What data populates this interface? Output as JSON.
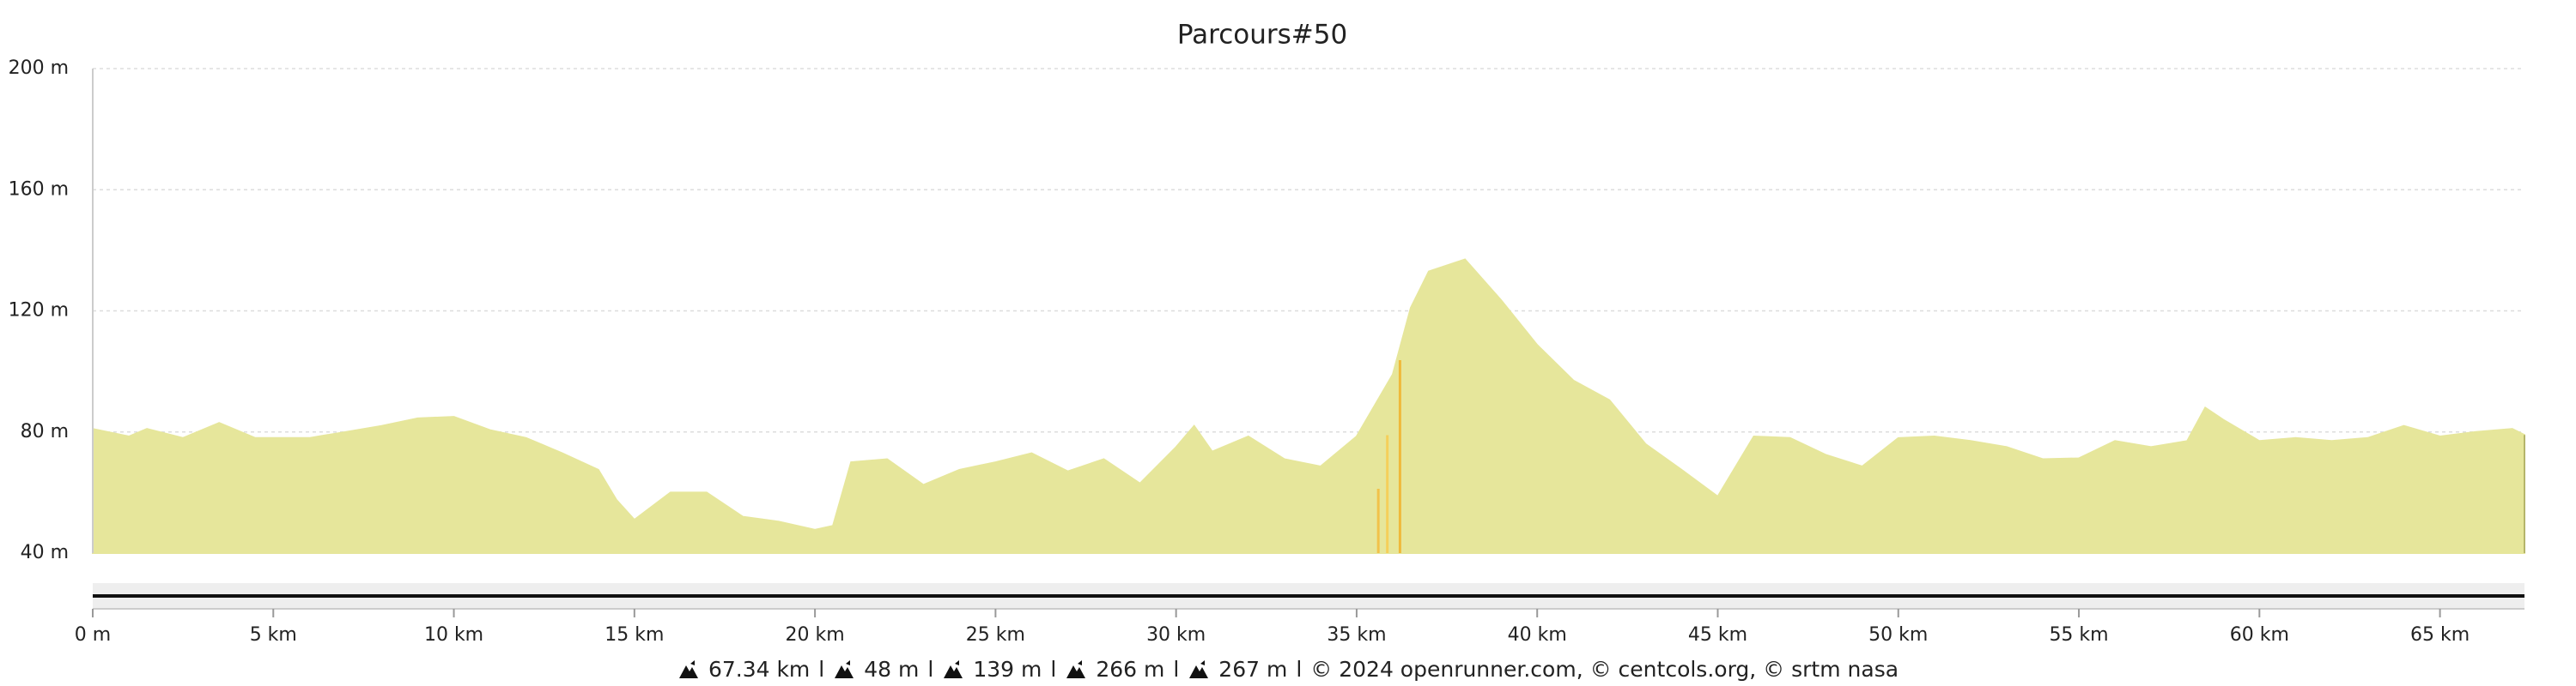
{
  "chart_data": {
    "type": "area",
    "title": "Parcours#50",
    "x": [
      0,
      1,
      1.5,
      2.5,
      3.5,
      4.5,
      5,
      6,
      7,
      8,
      9,
      10,
      11,
      12,
      13,
      14,
      14.5,
      15,
      16,
      17,
      18,
      19,
      20,
      20.5,
      21,
      22,
      23,
      24,
      25,
      26,
      27,
      28,
      29,
      30,
      30.5,
      31,
      32,
      33,
      34,
      35,
      36,
      36.5,
      37,
      38,
      39,
      40,
      41,
      42,
      43,
      44,
      45,
      46,
      47,
      48,
      49,
      50,
      51,
      52,
      53,
      54,
      55,
      56,
      57,
      58,
      58.5,
      59,
      60,
      61,
      62,
      63,
      64,
      65,
      66,
      67,
      67.34
    ],
    "values": [
      81,
      78.5,
      81,
      78,
      83,
      78,
      78,
      78,
      80,
      82,
      84.5,
      85,
      80.6,
      78,
      73,
      67.5,
      57.6,
      51,
      60,
      60,
      52,
      50.4,
      47.7,
      49,
      70,
      71,
      62.5,
      67.5,
      70,
      73,
      67,
      71,
      63,
      75,
      82,
      73.5,
      78.5,
      71,
      68.6,
      78.5,
      99,
      121,
      133,
      137,
      123.5,
      108.7,
      97,
      90.5,
      76,
      67.5,
      58.7,
      78.5,
      78,
      72.4,
      68.6,
      78,
      78.5,
      77,
      75,
      71,
      71.3,
      77,
      75,
      77,
      88,
      84,
      77,
      78,
      77,
      78,
      82,
      78.5,
      80,
      81,
      79
    ],
    "color": "#e6e69b",
    "xlim": [
      0,
      67.34
    ],
    "ylim": [
      40,
      200
    ],
    "xticks": [
      {
        "value": 0,
        "label": "0 m"
      },
      {
        "value": 5,
        "label": "5 km"
      },
      {
        "value": 10,
        "label": "10 km"
      },
      {
        "value": 15,
        "label": "15 km"
      },
      {
        "value": 20,
        "label": "20 km"
      },
      {
        "value": 25,
        "label": "25 km"
      },
      {
        "value": 30,
        "label": "30 km"
      },
      {
        "value": 35,
        "label": "35 km"
      },
      {
        "value": 40,
        "label": "40 km"
      },
      {
        "value": 45,
        "label": "45 km"
      },
      {
        "value": 50,
        "label": "50 km"
      },
      {
        "value": 55,
        "label": "55 km"
      },
      {
        "value": 60,
        "label": "60 km"
      },
      {
        "value": 65,
        "label": "65 km"
      }
    ],
    "yticks": [
      {
        "value": 40,
        "label": "40 m"
      },
      {
        "value": 80,
        "label": "80 m"
      },
      {
        "value": 120,
        "label": "120 m"
      },
      {
        "value": 160,
        "label": "160 m"
      },
      {
        "value": 200,
        "label": "200 m"
      }
    ],
    "grid": true
  },
  "footer": {
    "stats": [
      "67.34 km",
      "48 m",
      "139 m",
      "266 m",
      "267 m"
    ],
    "separator": "l",
    "credits": "© 2024 openrunner.com, © centcols.org, © srtm nasa"
  }
}
